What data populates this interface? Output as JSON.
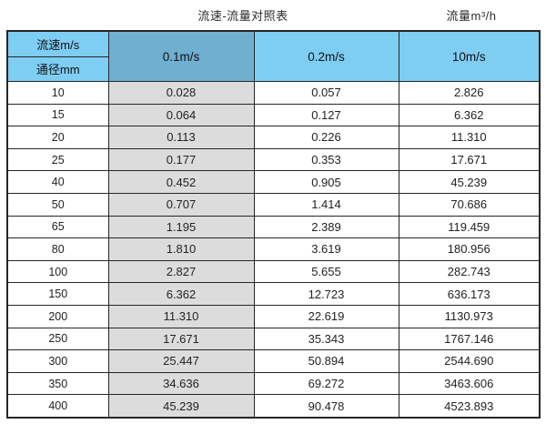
{
  "page": {
    "title": "流速-流量对照表",
    "unit_label": "流量m³/h"
  },
  "table": {
    "corner_top": "流速m/s",
    "corner_bottom": "通径mm",
    "columns": [
      "0.1m/s",
      "0.2m/s",
      "10m/s"
    ],
    "rows": [
      {
        "diameter": "10",
        "values": [
          "0.028",
          "0.057",
          "2.826"
        ]
      },
      {
        "diameter": "15",
        "values": [
          "0.064",
          "0.127",
          "6.362"
        ]
      },
      {
        "diameter": "20",
        "values": [
          "0.113",
          "0.226",
          "11.310"
        ]
      },
      {
        "diameter": "25",
        "values": [
          "0.177",
          "0.353",
          "17.671"
        ]
      },
      {
        "diameter": "40",
        "values": [
          "0.452",
          "0.905",
          "45.239"
        ]
      },
      {
        "diameter": "50",
        "values": [
          "0.707",
          "1.414",
          "70.686"
        ]
      },
      {
        "diameter": "65",
        "values": [
          "1.195",
          "2.389",
          "119.459"
        ]
      },
      {
        "diameter": "80",
        "values": [
          "1.810",
          "3.619",
          "180.956"
        ]
      },
      {
        "diameter": "100",
        "values": [
          "2.827",
          "5.655",
          "282.743"
        ]
      },
      {
        "diameter": "150",
        "values": [
          "6.362",
          "12.723",
          "636.173"
        ]
      },
      {
        "diameter": "200",
        "values": [
          "11.310",
          "22.619",
          "1130.973"
        ]
      },
      {
        "diameter": "250",
        "values": [
          "17.671",
          "35.343",
          "1767.146"
        ]
      },
      {
        "diameter": "300",
        "values": [
          "25.447",
          "50.894",
          "2544.690"
        ]
      },
      {
        "diameter": "350",
        "values": [
          "34.636",
          "69.272",
          "3463.606"
        ]
      },
      {
        "diameter": "400",
        "values": [
          "45.239",
          "90.478",
          "4523.893"
        ]
      }
    ]
  },
  "colors": {
    "header_blue": "#7ECDF2",
    "header_dark_blue": "#6FAFCF",
    "shaded_column_gray": "#DCDCDC",
    "border": "#262626"
  },
  "chart_data": {
    "type": "table",
    "title": "流速-流量对照表",
    "unit_label": "流量m³/h",
    "col_header": "流速m/s",
    "row_header": "通径mm",
    "columns": [
      "0.1m/s",
      "0.2m/s",
      "10m/s"
    ],
    "diameters_mm": [
      10,
      15,
      20,
      25,
      40,
      50,
      65,
      80,
      100,
      150,
      200,
      250,
      300,
      350,
      400
    ],
    "series": [
      {
        "name": "0.1m/s",
        "values": [
          0.028,
          0.064,
          0.113,
          0.177,
          0.452,
          0.707,
          1.195,
          1.81,
          2.827,
          6.362,
          11.31,
          17.671,
          25.447,
          34.636,
          45.239
        ]
      },
      {
        "name": "0.2m/s",
        "values": [
          0.057,
          0.127,
          0.226,
          0.353,
          0.905,
          1.414,
          2.389,
          3.619,
          5.655,
          12.723,
          22.619,
          35.343,
          50.894,
          69.272,
          90.478
        ]
      },
      {
        "name": "10m/s",
        "values": [
          2.826,
          6.362,
          11.31,
          17.671,
          45.239,
          70.686,
          119.459,
          180.956,
          282.743,
          636.173,
          1130.973,
          1767.146,
          2544.69,
          3463.606,
          4523.893
        ]
      }
    ]
  }
}
